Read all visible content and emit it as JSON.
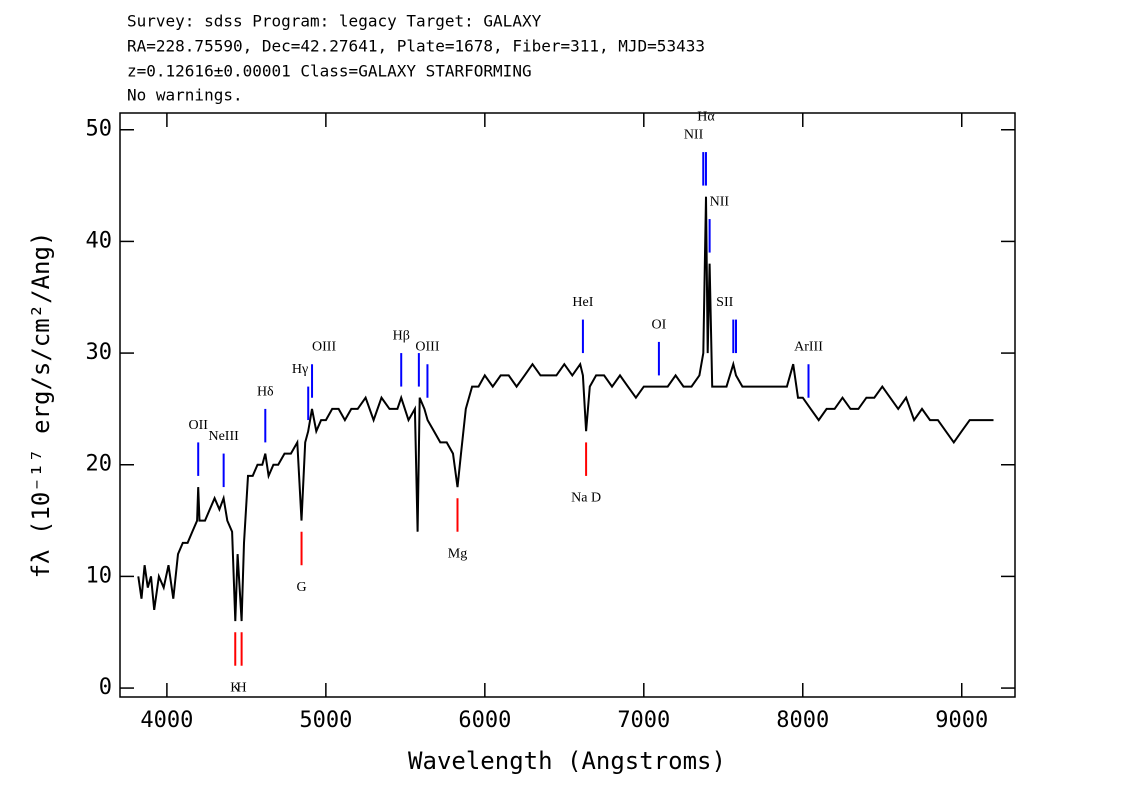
{
  "chart_data": {
    "type": "line",
    "title_lines": [
      "Survey: sdss Program: legacy Target: GALAXY",
      "RA=228.75590, Dec=42.27641, Plate=1678, Fiber=311, MJD=53433",
      "z=0.12616±0.00001 Class=GALAXY STARFORMING",
      "No warnings."
    ],
    "xlabel": "Wavelength (Angstroms)",
    "ylabel": "fλ (10⁻¹⁷ erg/s/cm²/Ang)",
    "xlim": [
      3705,
      9335
    ],
    "ylim": [
      -0.8,
      51.5
    ],
    "xticks": [
      4000,
      5000,
      6000,
      7000,
      8000,
      9000
    ],
    "yticks": [
      0,
      10,
      20,
      30,
      40,
      50
    ],
    "color": "#000000",
    "x": [
      3820,
      3840,
      3860,
      3880,
      3900,
      3920,
      3950,
      3980,
      4010,
      4040,
      4070,
      4100,
      4130,
      4160,
      4190,
      4197,
      4205,
      4240,
      4270,
      4300,
      4330,
      4357,
      4380,
      4410,
      4430,
      4445,
      4470,
      4485,
      4510,
      4540,
      4570,
      4600,
      4619,
      4640,
      4670,
      4700,
      4740,
      4780,
      4820,
      4847,
      4870,
      4889,
      4913,
      4940,
      4970,
      5000,
      5040,
      5080,
      5120,
      5160,
      5200,
      5250,
      5300,
      5350,
      5400,
      5450,
      5474,
      5520,
      5560,
      5577,
      5590,
      5620,
      5640,
      5680,
      5720,
      5760,
      5800,
      5828,
      5850,
      5880,
      5920,
      5960,
      6000,
      6050,
      6100,
      6150,
      6200,
      6250,
      6300,
      6350,
      6400,
      6450,
      6500,
      6550,
      6600,
      6617,
      6637,
      6660,
      6700,
      6750,
      6800,
      6850,
      6900,
      6950,
      7000,
      7050,
      7100,
      7150,
      7200,
      7250,
      7300,
      7350,
      7374,
      7391,
      7402,
      7414,
      7430,
      7470,
      7520,
      7563,
      7580,
      7620,
      7660,
      7700,
      7750,
      7800,
      7850,
      7900,
      7940,
      7970,
      8000,
      8050,
      8100,
      8150,
      8200,
      8250,
      8300,
      8350,
      8400,
      8450,
      8500,
      8550,
      8600,
      8650,
      8700,
      8750,
      8800,
      8850,
      8900,
      8950,
      9000,
      9050,
      9100,
      9150,
      9200
    ],
    "values": [
      10,
      8,
      11,
      9,
      10,
      7,
      10,
      9,
      11,
      8,
      12,
      13,
      13,
      14,
      15,
      18,
      15,
      15,
      16,
      17,
      16,
      17,
      15,
      14,
      6,
      12,
      6,
      13,
      19,
      19,
      20,
      20,
      21,
      19,
      20,
      20,
      21,
      21,
      22,
      15,
      22,
      23,
      25,
      23,
      24,
      24,
      25,
      25,
      24,
      25,
      25,
      26,
      24,
      26,
      25,
      25,
      26,
      24,
      25,
      14,
      26,
      25,
      24,
      23,
      22,
      22,
      21,
      18,
      21,
      25,
      27,
      27,
      28,
      27,
      28,
      28,
      27,
      28,
      29,
      28,
      28,
      28,
      29,
      28,
      29,
      28,
      23,
      27,
      28,
      28,
      27,
      28,
      27,
      26,
      27,
      27,
      27,
      27,
      28,
      27,
      27,
      28,
      30,
      44,
      30,
      38,
      27,
      27,
      27,
      29,
      28,
      27,
      27,
      27,
      27,
      27,
      27,
      27,
      29,
      26,
      26,
      25,
      24,
      25,
      25,
      26,
      25,
      25,
      26,
      26,
      27,
      26,
      25,
      26,
      24,
      25,
      24,
      24,
      23,
      22,
      23,
      24,
      24,
      24,
      24
    ],
    "emission_color": "#0000ff",
    "absorption_color": "#ff0000",
    "emission_lines": [
      {
        "label": "OII",
        "wavelength": 4197
      },
      {
        "label": "NeIII",
        "wavelength": 4357
      },
      {
        "label": "Hδ",
        "wavelength": 4619
      },
      {
        "label": "Hγ",
        "wavelength": 4889
      },
      {
        "label": "OIII",
        "wavelength": 4913
      },
      {
        "label": "Hβ",
        "wavelength": 5474
      },
      {
        "label": null,
        "wavelength": 5585
      },
      {
        "label": "OIII",
        "wavelength": 5639
      },
      {
        "label": "HeI",
        "wavelength": 6617
      },
      {
        "label": "OI",
        "wavelength": 7095
      },
      {
        "label": "NII",
        "wavelength": 7374
      },
      {
        "label": "Hα",
        "wavelength": 7391
      },
      {
        "label": "NII",
        "wavelength": 7414
      },
      {
        "label": "SII",
        "wavelength": 7563
      },
      {
        "label": null,
        "wavelength": 7580
      },
      {
        "label": "ArIII",
        "wavelength": 8036
      }
    ],
    "absorption_lines": [
      {
        "label": "K",
        "wavelength": 4430
      },
      {
        "label": "H",
        "wavelength": 4470
      },
      {
        "label": "G",
        "wavelength": 4847
      },
      {
        "label": "Mg",
        "wavelength": 5828
      },
      {
        "label": "Na D",
        "wavelength": 6637
      }
    ]
  }
}
